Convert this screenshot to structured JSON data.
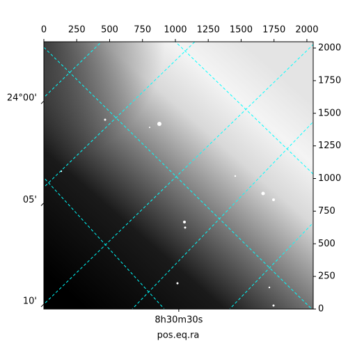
{
  "chart_data": {
    "type": "image",
    "xlim": [
      0,
      2048
    ],
    "ylim": [
      0,
      2048
    ],
    "xticks": [
      0,
      250,
      500,
      750,
      1000,
      1250,
      1500,
      1750,
      2000
    ],
    "yticks": [
      0,
      250,
      500,
      750,
      1000,
      1250,
      1500,
      1750,
      2000
    ],
    "dec_ticks": [
      {
        "value": 1615,
        "label": "24°00'"
      },
      {
        "value": 834,
        "label": "05'"
      },
      {
        "value": 59,
        "label": "10'"
      }
    ],
    "ra_ticks": [
      {
        "value": 1026,
        "label": "8h30m30s"
      }
    ],
    "xlabel": "pos.eq.ra",
    "grid_color": "#00ffff"
  }
}
